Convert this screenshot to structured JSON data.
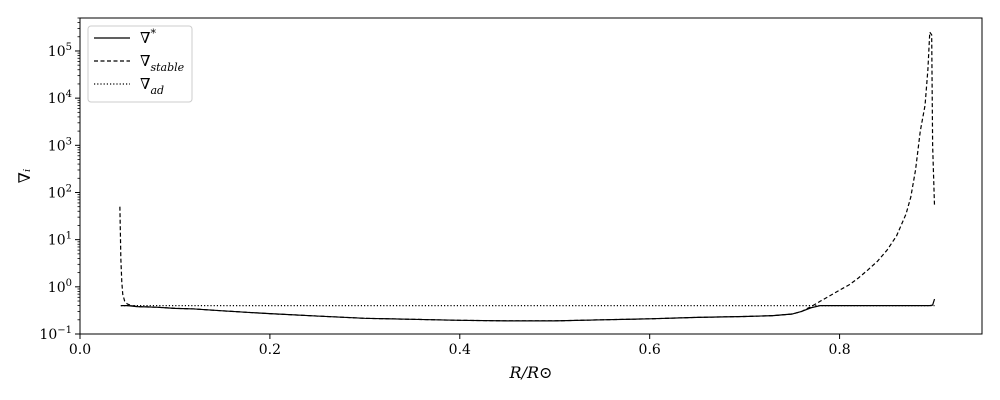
{
  "chart_data": {
    "type": "line",
    "xlabel": "R/R⊙",
    "ylabel": "∇ᵢ",
    "xlim": [
      0.0,
      0.95
    ],
    "ylim": [
      0.1,
      500000
    ],
    "yscale": "log",
    "grid": false,
    "legend_position": "top-left",
    "x_ticks": [
      {
        "value": 0.0,
        "label": "0.0"
      },
      {
        "value": 0.2,
        "label": "0.2"
      },
      {
        "value": 0.4,
        "label": "0.4"
      },
      {
        "value": 0.6,
        "label": "0.6"
      },
      {
        "value": 0.8,
        "label": "0.8"
      }
    ],
    "y_ticks": [
      {
        "value": 0.1,
        "base": "10",
        "exp": "−1"
      },
      {
        "value": 1,
        "base": "10",
        "exp": "0"
      },
      {
        "value": 10,
        "base": "10",
        "exp": "1"
      },
      {
        "value": 100,
        "base": "10",
        "exp": "2"
      },
      {
        "value": 1000,
        "base": "10",
        "exp": "3"
      },
      {
        "value": 10000,
        "base": "10",
        "exp": "4"
      },
      {
        "value": 100000,
        "base": "10",
        "exp": "5"
      }
    ],
    "series": [
      {
        "name": "∇*",
        "sub": "",
        "sup": "*",
        "dash": "solid",
        "x": [
          0.043,
          0.05,
          0.06,
          0.08,
          0.1,
          0.12,
          0.15,
          0.18,
          0.2,
          0.25,
          0.3,
          0.35,
          0.4,
          0.45,
          0.5,
          0.55,
          0.6,
          0.65,
          0.7,
          0.73,
          0.75,
          0.76,
          0.77,
          0.78,
          0.8,
          0.85,
          0.88,
          0.895,
          0.898,
          0.9
        ],
        "y": [
          0.4,
          0.4,
          0.38,
          0.37,
          0.35,
          0.34,
          0.31,
          0.285,
          0.27,
          0.24,
          0.215,
          0.205,
          0.195,
          0.19,
          0.19,
          0.2,
          0.21,
          0.225,
          0.235,
          0.245,
          0.265,
          0.3,
          0.36,
          0.4,
          0.4,
          0.4,
          0.4,
          0.4,
          0.41,
          0.55
        ]
      },
      {
        "name": "∇stable",
        "sub": "stable",
        "sup": "",
        "dash": "dashed",
        "x": [
          0.042,
          0.0425,
          0.043,
          0.044,
          0.045,
          0.047,
          0.05,
          0.055,
          0.06,
          0.08,
          0.1,
          0.12,
          0.15,
          0.18,
          0.2,
          0.25,
          0.3,
          0.35,
          0.4,
          0.45,
          0.5,
          0.55,
          0.6,
          0.65,
          0.7,
          0.73,
          0.75,
          0.76,
          0.765,
          0.77,
          0.78,
          0.79,
          0.8,
          0.81,
          0.82,
          0.83,
          0.84,
          0.85,
          0.86,
          0.87,
          0.875,
          0.88,
          0.885,
          0.89,
          0.893,
          0.895,
          0.897,
          0.898,
          0.9
        ],
        "y": [
          50,
          15,
          4,
          1.3,
          0.7,
          0.5,
          0.43,
          0.4,
          0.38,
          0.37,
          0.35,
          0.34,
          0.31,
          0.285,
          0.27,
          0.24,
          0.215,
          0.205,
          0.195,
          0.19,
          0.19,
          0.2,
          0.21,
          0.225,
          0.235,
          0.245,
          0.265,
          0.3,
          0.34,
          0.38,
          0.5,
          0.65,
          0.85,
          1.1,
          1.55,
          2.3,
          3.5,
          6,
          12,
          35,
          80,
          300,
          2000,
          7000,
          40000,
          250000,
          220000,
          1000,
          50
        ]
      },
      {
        "name": "∇ad",
        "sub": "ad",
        "sup": "",
        "dash": "dotted",
        "x": [
          0.043,
          0.9
        ],
        "y": [
          0.4,
          0.4
        ]
      }
    ]
  }
}
